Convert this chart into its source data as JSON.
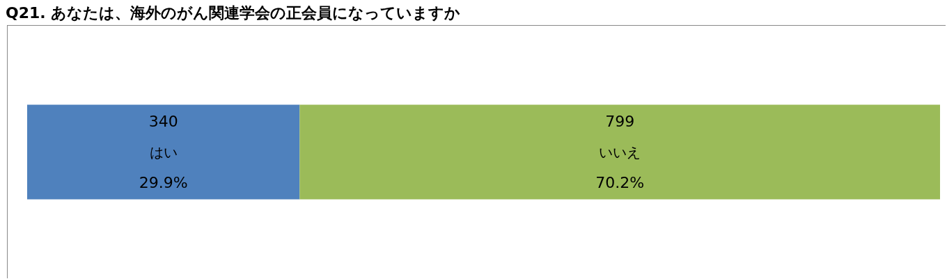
{
  "chart_data": {
    "type": "bar",
    "title": "Q21. あなたは、海外のがん関連学会の正会員になっていますか",
    "orientation": "horizontal",
    "stacked": true,
    "data_labels": true,
    "legend": false,
    "grid": false,
    "tick_labels": false,
    "categories": [
      null
    ],
    "annotations": [
      "29.9%",
      "70.2%"
    ],
    "series": [
      {
        "name": "はい",
        "color": "#4f81bd",
        "values": [
          340
        ]
      },
      {
        "name": "いいえ",
        "color": "#9bbb59",
        "values": [
          799
        ]
      }
    ]
  }
}
